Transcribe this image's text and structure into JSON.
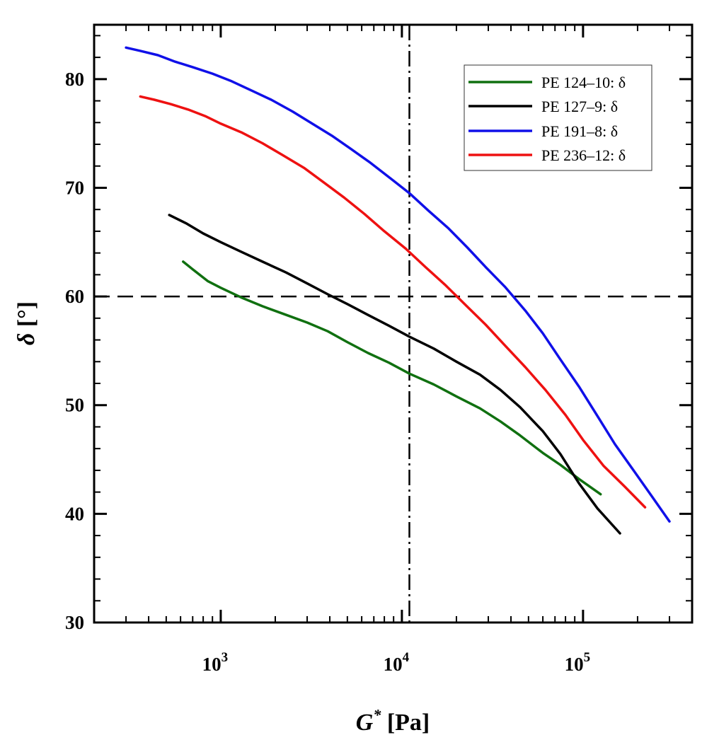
{
  "chart_data": {
    "type": "line",
    "xscale": "log",
    "xlim": [
      200,
      400000
    ],
    "ylim": [
      30,
      85
    ],
    "xlabel": {
      "main": "G",
      "sup": "*",
      "unit": " [Pa]"
    },
    "ylabel": {
      "main": "δ",
      "unit": " [°]"
    },
    "yticks": [
      30,
      40,
      50,
      60,
      70,
      80
    ],
    "xticks": [
      {
        "value": 1000,
        "base": "10",
        "exp": "3"
      },
      {
        "value": 10000,
        "base": "10",
        "exp": "4"
      },
      {
        "value": 100000,
        "base": "10",
        "exp": "5"
      }
    ],
    "reference_lines": [
      {
        "orientation": "horizontal",
        "value": 60,
        "style": "dashed"
      },
      {
        "orientation": "vertical",
        "value": 11000,
        "style": "dashdot"
      }
    ],
    "legend_position": "top-right",
    "series": [
      {
        "name": "PE 124–10: δ",
        "color": "#107010",
        "x": [
          620,
          700,
          850,
          1000,
          1300,
          1700,
          2300,
          3000,
          3900,
          5000,
          6500,
          8500,
          11000,
          15000,
          20000,
          27000,
          35000,
          45000,
          60000,
          75000,
          95000,
          125000
        ],
        "y": [
          63.2,
          62.5,
          61.4,
          60.8,
          59.9,
          59.1,
          58.3,
          57.6,
          56.8,
          55.8,
          54.8,
          53.9,
          52.9,
          51.9,
          50.8,
          49.7,
          48.5,
          47.2,
          45.6,
          44.5,
          43.2,
          41.8
        ]
      },
      {
        "name": "PE 127–9: δ",
        "color": "#000000",
        "x": [
          520,
          650,
          800,
          1000,
          1300,
          1700,
          2300,
          3000,
          3900,
          5000,
          6500,
          8500,
          11000,
          15000,
          20000,
          27000,
          35000,
          45000,
          60000,
          75000,
          95000,
          120000,
          160000
        ],
        "y": [
          67.5,
          66.7,
          65.8,
          65.0,
          64.1,
          63.2,
          62.2,
          61.2,
          60.2,
          59.3,
          58.3,
          57.3,
          56.3,
          55.2,
          54.0,
          52.8,
          51.4,
          49.8,
          47.6,
          45.5,
          42.8,
          40.5,
          38.2
        ]
      },
      {
        "name": "PE 191–8: δ",
        "color": "#1010e8",
        "x": [
          300,
          360,
          450,
          560,
          700,
          900,
          1150,
          1500,
          1900,
          2500,
          3200,
          4100,
          5200,
          6700,
          8600,
          11000,
          14000,
          18000,
          23000,
          29000,
          37000,
          48000,
          60000,
          75000,
          95000,
          120000,
          150000,
          190000,
          240000,
          300000
        ],
        "y": [
          82.9,
          82.6,
          82.2,
          81.6,
          81.1,
          80.5,
          79.8,
          78.9,
          78.1,
          77.0,
          75.9,
          74.8,
          73.6,
          72.3,
          70.9,
          69.5,
          67.9,
          66.3,
          64.5,
          62.7,
          60.9,
          58.7,
          56.6,
          54.2,
          51.7,
          49.0,
          46.4,
          44.0,
          41.6,
          39.3
        ]
      },
      {
        "name": "PE 236–12: δ",
        "color": "#ee1111",
        "x": [
          360,
          430,
          530,
          660,
          820,
          1000,
          1300,
          1700,
          2200,
          2900,
          3700,
          4800,
          6200,
          8000,
          10500,
          13500,
          17500,
          22500,
          29000,
          37000,
          48000,
          62000,
          80000,
          100000,
          130000,
          170000,
          220000
        ],
        "y": [
          78.4,
          78.1,
          77.7,
          77.2,
          76.6,
          75.9,
          75.1,
          74.1,
          73.0,
          71.8,
          70.5,
          69.1,
          67.6,
          66.0,
          64.4,
          62.7,
          61.0,
          59.2,
          57.4,
          55.5,
          53.5,
          51.4,
          49.1,
          46.8,
          44.4,
          42.5,
          40.6
        ]
      }
    ]
  }
}
